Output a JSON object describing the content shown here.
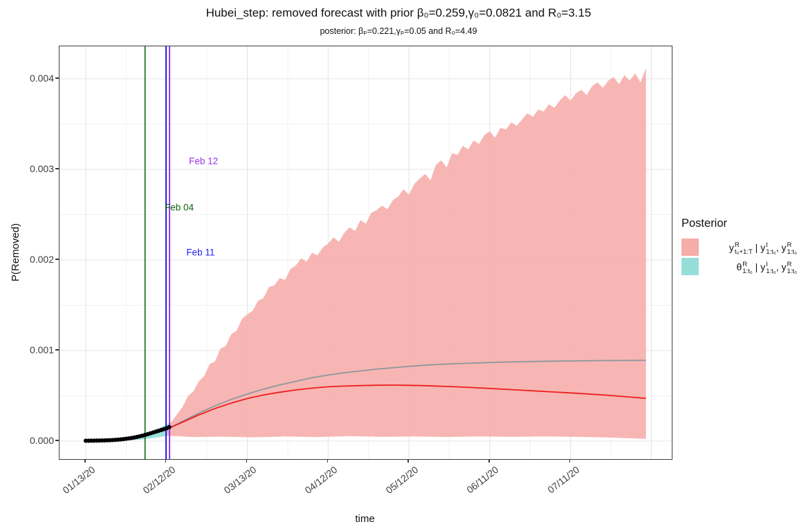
{
  "chart_data": {
    "type": "area",
    "title": "Hubei_step: removed forecast with prior β₀=0.259,γ₀=0.0821 and R₀=3.15",
    "subtitle": "posterior: βₚ=0.221,γₚ=0.05 and R₀=4.49",
    "xlabel": "time",
    "ylabel": "P(Removed)",
    "x_ticks": [
      {
        "label": "01/13/20",
        "day": 0
      },
      {
        "label": "02/12/20",
        "day": 30
      },
      {
        "label": "03/13/20",
        "day": 60
      },
      {
        "label": "04/12/20",
        "day": 90
      },
      {
        "label": "05/12/20",
        "day": 120
      },
      {
        "label": "06/11/20",
        "day": 150
      },
      {
        "label": "07/11/20",
        "day": 180
      }
    ],
    "x_minor_days": [
      15,
      45,
      75,
      105,
      135,
      165,
      195
    ],
    "x_extra_major_days": [
      210
    ],
    "y_ticks": [
      {
        "label": "0.000",
        "value_e6": 0
      },
      {
        "label": "0.001",
        "value_e6": 1000
      },
      {
        "label": "0.002",
        "value_e6": 2000
      },
      {
        "label": "0.003",
        "value_e6": 3000
      },
      {
        "label": "0.004",
        "value_e6": 4000
      }
    ],
    "y_minor_e6": [
      500,
      1500,
      2500,
      3500
    ],
    "ylim_e6": [
      -200,
      4360
    ],
    "xlim_days": [
      -9.8,
      217.6
    ],
    "units": "series values are probabilities in 1e-6",
    "vlines": [
      {
        "label": "Feb 04",
        "day": 22,
        "color": "#0B640B",
        "width": 1.6
      },
      {
        "label": "Feb 11",
        "day": 29.8,
        "color": "#2222EE",
        "width": 2
      },
      {
        "label": "Feb 12",
        "day": 31.1,
        "color": "#9933E8",
        "width": 2
      }
    ],
    "annotations": [
      {
        "text": "Feb 12",
        "day": 43.7,
        "value_e6": 3092,
        "color": "#9933E8"
      },
      {
        "text": "Feb 04",
        "day": 34.7,
        "value_e6": 2580,
        "color": "#0B640B"
      },
      {
        "text": "Feb 11",
        "day": 42.6,
        "value_e6": 2084,
        "color": "#2222EE"
      }
    ],
    "series": {
      "forecast_upper": {
        "name": "forecast 95% band upper",
        "start_day": 30,
        "step_days": 2,
        "values_e6": [
          160,
          220,
          300,
          380,
          500,
          550,
          660,
          720,
          850,
          880,
          1020,
          1050,
          1180,
          1220,
          1350,
          1400,
          1440,
          1550,
          1580,
          1700,
          1720,
          1800,
          1780,
          1900,
          1940,
          2020,
          1980,
          2080,
          2050,
          2140,
          2180,
          2250,
          2200,
          2300,
          2360,
          2320,
          2440,
          2400,
          2520,
          2550,
          2600,
          2560,
          2660,
          2700,
          2780,
          2720,
          2840,
          2900,
          2950,
          2880,
          3050,
          3100,
          3020,
          3180,
          3160,
          3260,
          3220,
          3320,
          3280,
          3380,
          3420,
          3350,
          3460,
          3440,
          3520,
          3480,
          3550,
          3620,
          3580,
          3660,
          3640,
          3720,
          3680,
          3760,
          3820,
          3760,
          3840,
          3880,
          3820,
          3920,
          3960,
          3900,
          3980,
          4020,
          3940,
          4040,
          3980,
          4060,
          3960,
          4120
        ]
      },
      "forecast_lower": {
        "name": "forecast 95% band lower",
        "points": [
          [
            30,
            60
          ],
          [
            40,
            45
          ],
          [
            50,
            50
          ],
          [
            62,
            42
          ],
          [
            74,
            52
          ],
          [
            86,
            45
          ],
          [
            98,
            55
          ],
          [
            110,
            48
          ],
          [
            122,
            52
          ],
          [
            134,
            46
          ],
          [
            146,
            52
          ],
          [
            158,
            47
          ],
          [
            170,
            51
          ],
          [
            182,
            47
          ],
          [
            194,
            40
          ],
          [
            204,
            30
          ],
          [
            208,
            25
          ]
        ]
      },
      "mean_line": {
        "name": "posterior predictive mean",
        "points": [
          [
            31,
            145
          ],
          [
            36,
            220
          ],
          [
            42,
            310
          ],
          [
            48,
            390
          ],
          [
            54,
            460
          ],
          [
            60,
            520
          ],
          [
            66,
            575
          ],
          [
            72,
            620
          ],
          [
            78,
            660
          ],
          [
            84,
            700
          ],
          [
            90,
            730
          ],
          [
            96,
            755
          ],
          [
            102,
            775
          ],
          [
            108,
            795
          ],
          [
            114,
            810
          ],
          [
            120,
            825
          ],
          [
            126,
            838
          ],
          [
            132,
            848
          ],
          [
            138,
            856
          ],
          [
            144,
            862
          ],
          [
            150,
            868
          ],
          [
            156,
            873
          ],
          [
            162,
            877
          ],
          [
            168,
            880
          ],
          [
            174,
            883
          ],
          [
            180,
            885
          ],
          [
            186,
            887
          ],
          [
            192,
            889
          ],
          [
            198,
            890
          ],
          [
            204,
            891
          ],
          [
            208,
            892
          ]
        ]
      },
      "median_line": {
        "name": "forecast median",
        "points": [
          [
            31,
            145
          ],
          [
            36,
            210
          ],
          [
            42,
            290
          ],
          [
            48,
            360
          ],
          [
            54,
            420
          ],
          [
            60,
            470
          ],
          [
            66,
            510
          ],
          [
            72,
            540
          ],
          [
            78,
            565
          ],
          [
            84,
            585
          ],
          [
            90,
            600
          ],
          [
            96,
            608
          ],
          [
            102,
            613
          ],
          [
            108,
            617
          ],
          [
            114,
            618
          ],
          [
            120,
            616
          ],
          [
            126,
            612
          ],
          [
            132,
            606
          ],
          [
            138,
            599
          ],
          [
            144,
            591
          ],
          [
            150,
            582
          ],
          [
            156,
            572
          ],
          [
            162,
            562
          ],
          [
            168,
            552
          ],
          [
            174,
            542
          ],
          [
            180,
            532
          ],
          [
            186,
            521
          ],
          [
            192,
            510
          ],
          [
            198,
            496
          ],
          [
            204,
            482
          ],
          [
            208,
            472
          ]
        ]
      },
      "theta_upper": {
        "name": "theta posterior band upper",
        "points": [
          [
            8,
            14
          ],
          [
            12,
            25
          ],
          [
            16,
            42
          ],
          [
            20,
            70
          ],
          [
            24,
            108
          ],
          [
            28,
            155
          ],
          [
            30,
            185
          ],
          [
            31.5,
            210
          ]
        ]
      },
      "theta_lower": {
        "name": "theta posterior band lower",
        "points": [
          [
            8,
            2
          ],
          [
            12,
            4
          ],
          [
            16,
            8
          ],
          [
            20,
            15
          ],
          [
            24,
            30
          ],
          [
            28,
            48
          ],
          [
            30,
            60
          ],
          [
            31.5,
            72
          ]
        ]
      },
      "observed": {
        "name": "observed removed proportion",
        "start_day": 0,
        "step_days": 1,
        "values_e6": [
          4,
          4,
          5,
          5,
          6,
          6,
          7,
          8,
          9,
          10,
          12,
          14,
          16,
          19,
          22,
          26,
          30,
          35,
          40,
          46,
          53,
          60,
          68,
          77,
          86,
          95,
          104,
          113,
          122,
          132,
          142,
          155
        ]
      }
    }
  },
  "legend": {
    "title": "Posterior",
    "entries": [
      {
        "name": "forecast-band",
        "color": "#F6ACA8",
        "segments": [
          {
            "base": "y",
            "sup": "R",
            "sub": "t₀+1:T"
          },
          {
            "text": " | "
          },
          {
            "base": "y",
            "sup": "I",
            "sub": "1:t₀"
          },
          {
            "text": ", "
          },
          {
            "base": "y",
            "sup": "R",
            "sub": "1:t₀"
          }
        ]
      },
      {
        "name": "theta-band",
        "color": "#96DDD8",
        "segments": [
          {
            "base": "θ",
            "sup": "R",
            "sub": "1:t₀"
          },
          {
            "text": " | "
          },
          {
            "base": "y",
            "sup": "I",
            "sub": "1:t₀"
          },
          {
            "text": ", "
          },
          {
            "base": "y",
            "sup": "R",
            "sub": "1:t₀"
          }
        ]
      }
    ]
  },
  "colors": {
    "ribbon_pink": "#F6ACA8",
    "ribbon_teal": "#96DDD8",
    "mean_line": "#8D979D",
    "median_line": "#EE1E1E",
    "observed": "#000000",
    "grid_major": "#E4E4E4",
    "grid_minor": "#F1F1F1",
    "panel_border": "#3F3F3F",
    "tick_text": "#3D3D3D"
  }
}
